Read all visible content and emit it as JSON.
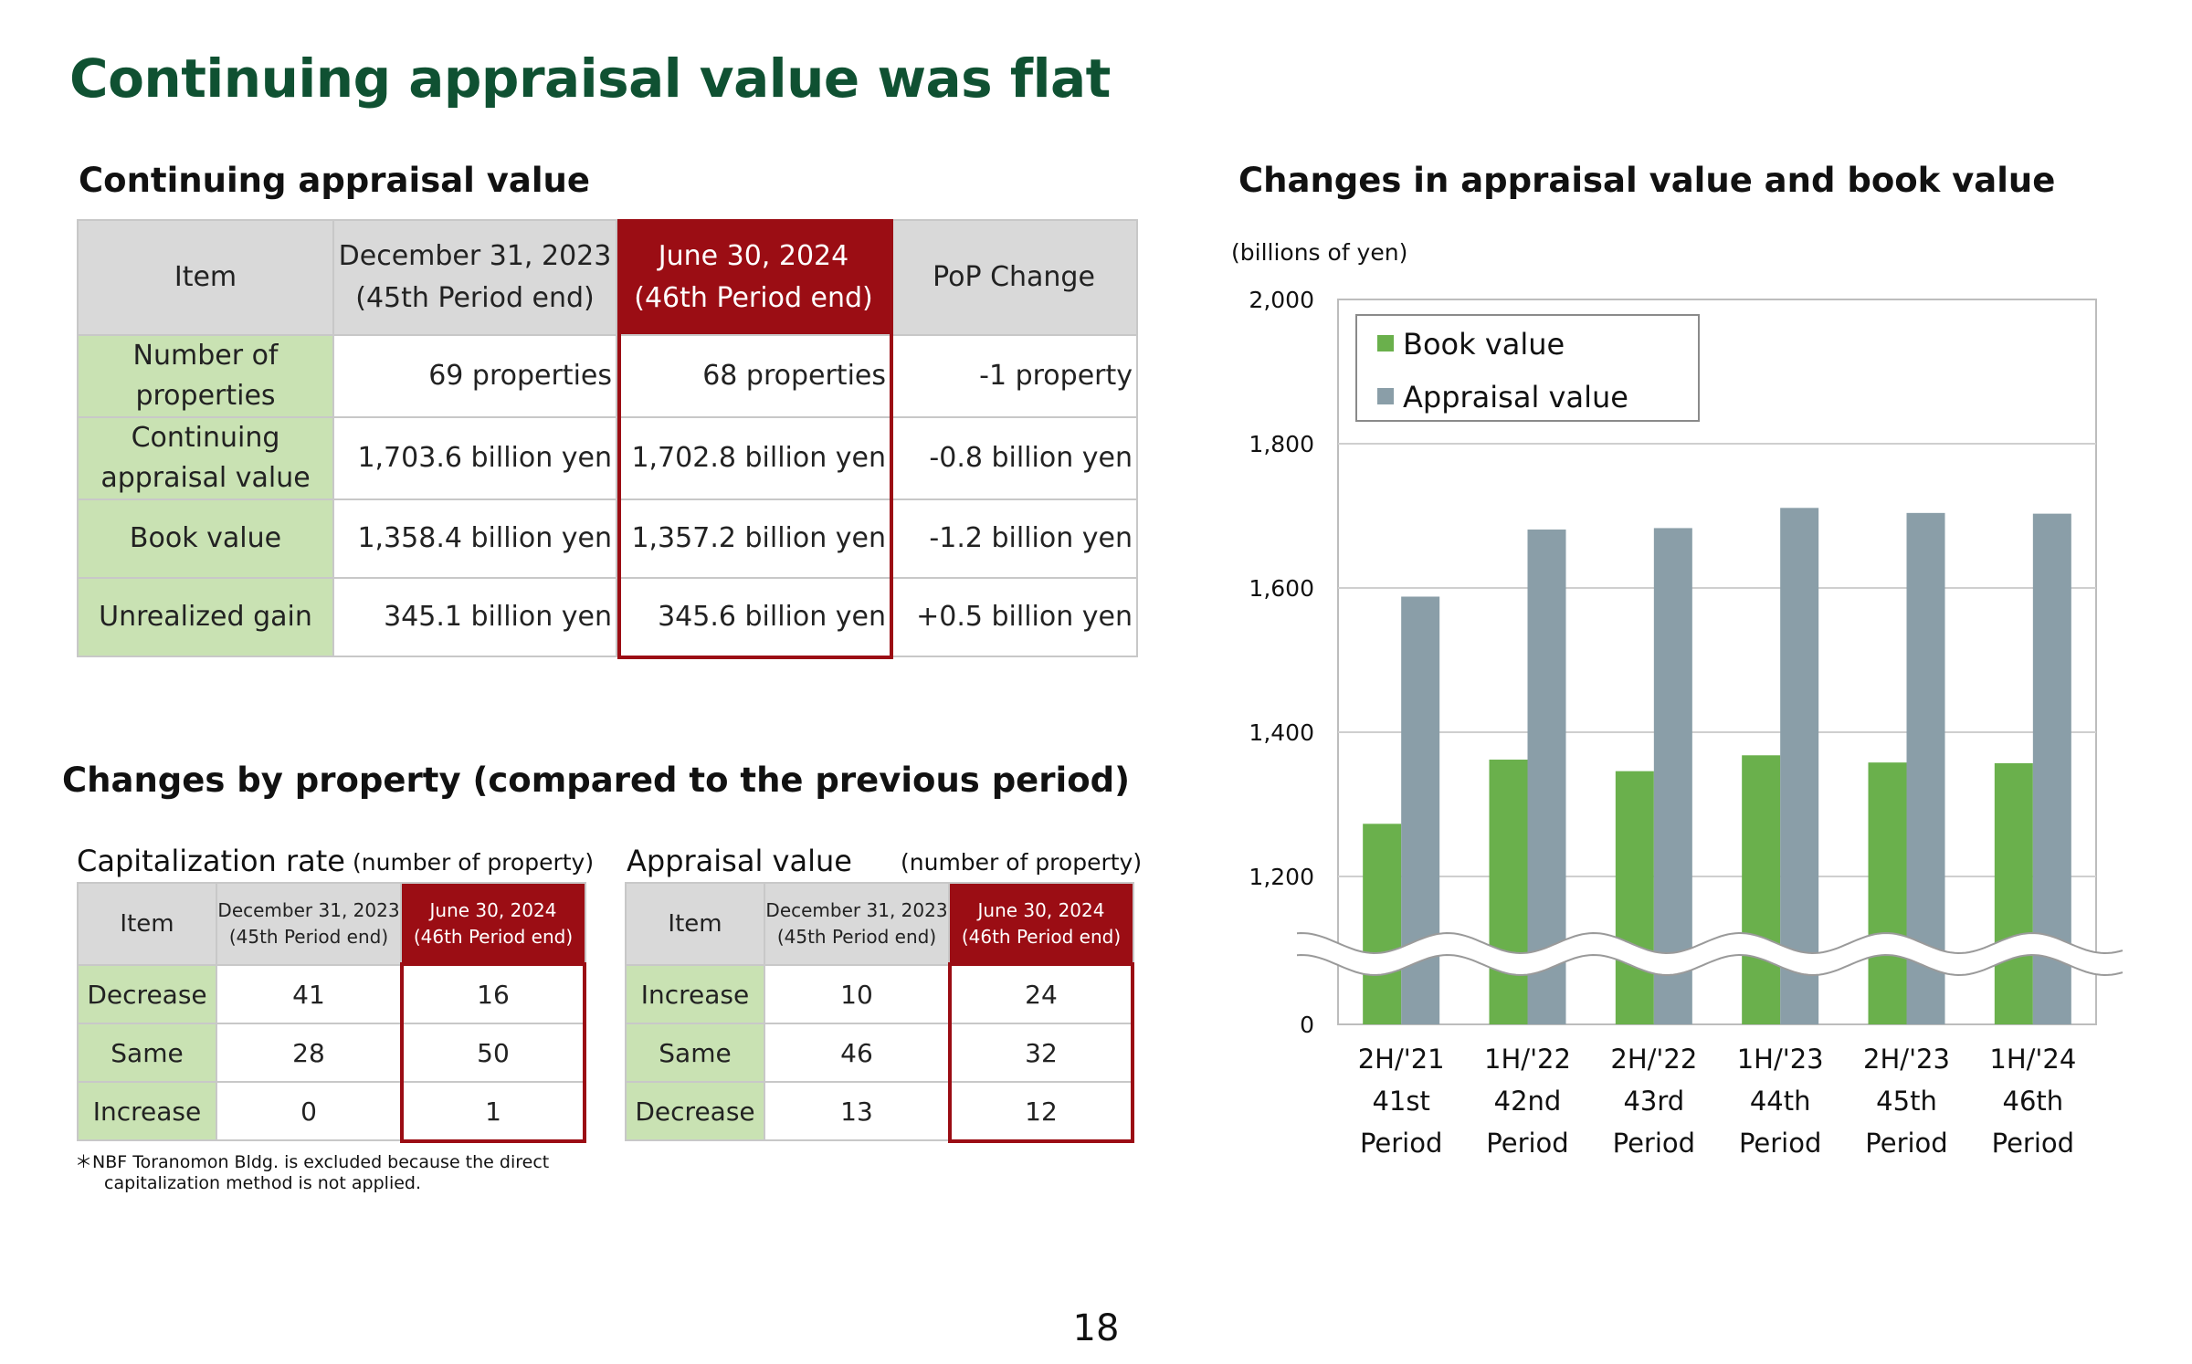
{
  "page": {
    "title": "Continuing appraisal value was flat",
    "page_number": "18"
  },
  "appraisal_section": {
    "title": "Continuing appraisal value",
    "headers": {
      "item": "Item",
      "prev_line1": "December 31, 2023",
      "prev_line2": "(45th Period end)",
      "curr_line1": "June 30, 2024",
      "curr_line2": "(46th Period end)",
      "change": "PoP Change"
    },
    "rows": [
      {
        "label_line1": "Number of",
        "label_line2": "properties",
        "prev": "69 properties",
        "curr": "68 properties",
        "change": "-1 property"
      },
      {
        "label_line1": "Continuing",
        "label_line2": "appraisal value",
        "prev": "1,703.6 billion yen",
        "curr": "1,702.8 billion yen",
        "change": "-0.8 billion yen"
      },
      {
        "label_line1": "Book value",
        "label_line2": "",
        "prev": "1,358.4 billion yen",
        "curr": "1,357.2 billion yen",
        "change": "-1.2 billion yen"
      },
      {
        "label_line1": "Unrealized gain",
        "label_line2": "",
        "prev": "345.1 billion yen",
        "curr": "345.6 billion yen",
        "change": "+0.5 billion yen"
      }
    ]
  },
  "changes_section": {
    "title": "Changes by property (compared to the previous period)",
    "cap_rate": {
      "title": "Capitalization rate",
      "unit": "(number of property)",
      "headers": {
        "item": "Item",
        "prev_line1": "December 31, 2023",
        "prev_line2": "(45th Period end)",
        "curr_line1": "June 30, 2024",
        "curr_line2": "(46th Period end)"
      },
      "rows": [
        {
          "label": "Decrease",
          "prev": "41",
          "curr": "16"
        },
        {
          "label": "Same",
          "prev": "28",
          "curr": "50"
        },
        {
          "label": "Increase",
          "prev": "0",
          "curr": "1"
        }
      ]
    },
    "appraisal": {
      "title": "Appraisal value",
      "unit": "(number of property)",
      "headers": {
        "item": "Item",
        "prev_line1": "December 31, 2023",
        "prev_line2": "(45th Period end)",
        "curr_line1": "June 30, 2024",
        "curr_line2": "(46th Period end)"
      },
      "rows": [
        {
          "label": "Increase",
          "prev": "10",
          "curr": "24"
        },
        {
          "label": "Same",
          "prev": "46",
          "curr": "32"
        },
        {
          "label": "Decrease",
          "prev": "13",
          "curr": "12"
        }
      ]
    },
    "footnote_line1": "＊NBF Toranomon Bldg. is excluded because the direct",
    "footnote_line2": "capitalization method is not applied."
  },
  "colors": {
    "title_green": "#0f5132",
    "highlight_red": "#9b0d14",
    "label_green": "#c9e2b3",
    "header_gray": "#d9d9d9",
    "book_bar": "#6ab04c",
    "appraisal_bar": "#8a9ea8"
  },
  "chart_data": {
    "type": "bar",
    "title": "Changes in appraisal value and book value",
    "ylabel": "(billions of yen)",
    "ylim": [
      0,
      2000
    ],
    "axis_break": true,
    "yticks": [
      0,
      1200,
      1400,
      1600,
      1800,
      2000
    ],
    "ytick_labels": [
      "0",
      "1,200",
      "1,400",
      "1,600",
      "1,800",
      "2,000"
    ],
    "grid": true,
    "legend_position": "top-left",
    "categories": [
      [
        "2H/'21",
        "41st",
        "Period"
      ],
      [
        "1H/'22",
        "42nd",
        "Period"
      ],
      [
        "2H/'22",
        "43rd",
        "Period"
      ],
      [
        "1H/'23",
        "44th",
        "Period"
      ],
      [
        "2H/'23",
        "45th",
        "Period"
      ],
      [
        "1H/'24",
        "46th",
        "Period"
      ]
    ],
    "series": [
      {
        "name": "Book value",
        "color": "#6ab04c",
        "values": [
          1273,
          1362,
          1346,
          1368,
          1358,
          1357
        ]
      },
      {
        "name": "Appraisal value",
        "color": "#8a9ea8",
        "values": [
          1588,
          1681,
          1683,
          1711,
          1704,
          1703
        ]
      }
    ]
  }
}
